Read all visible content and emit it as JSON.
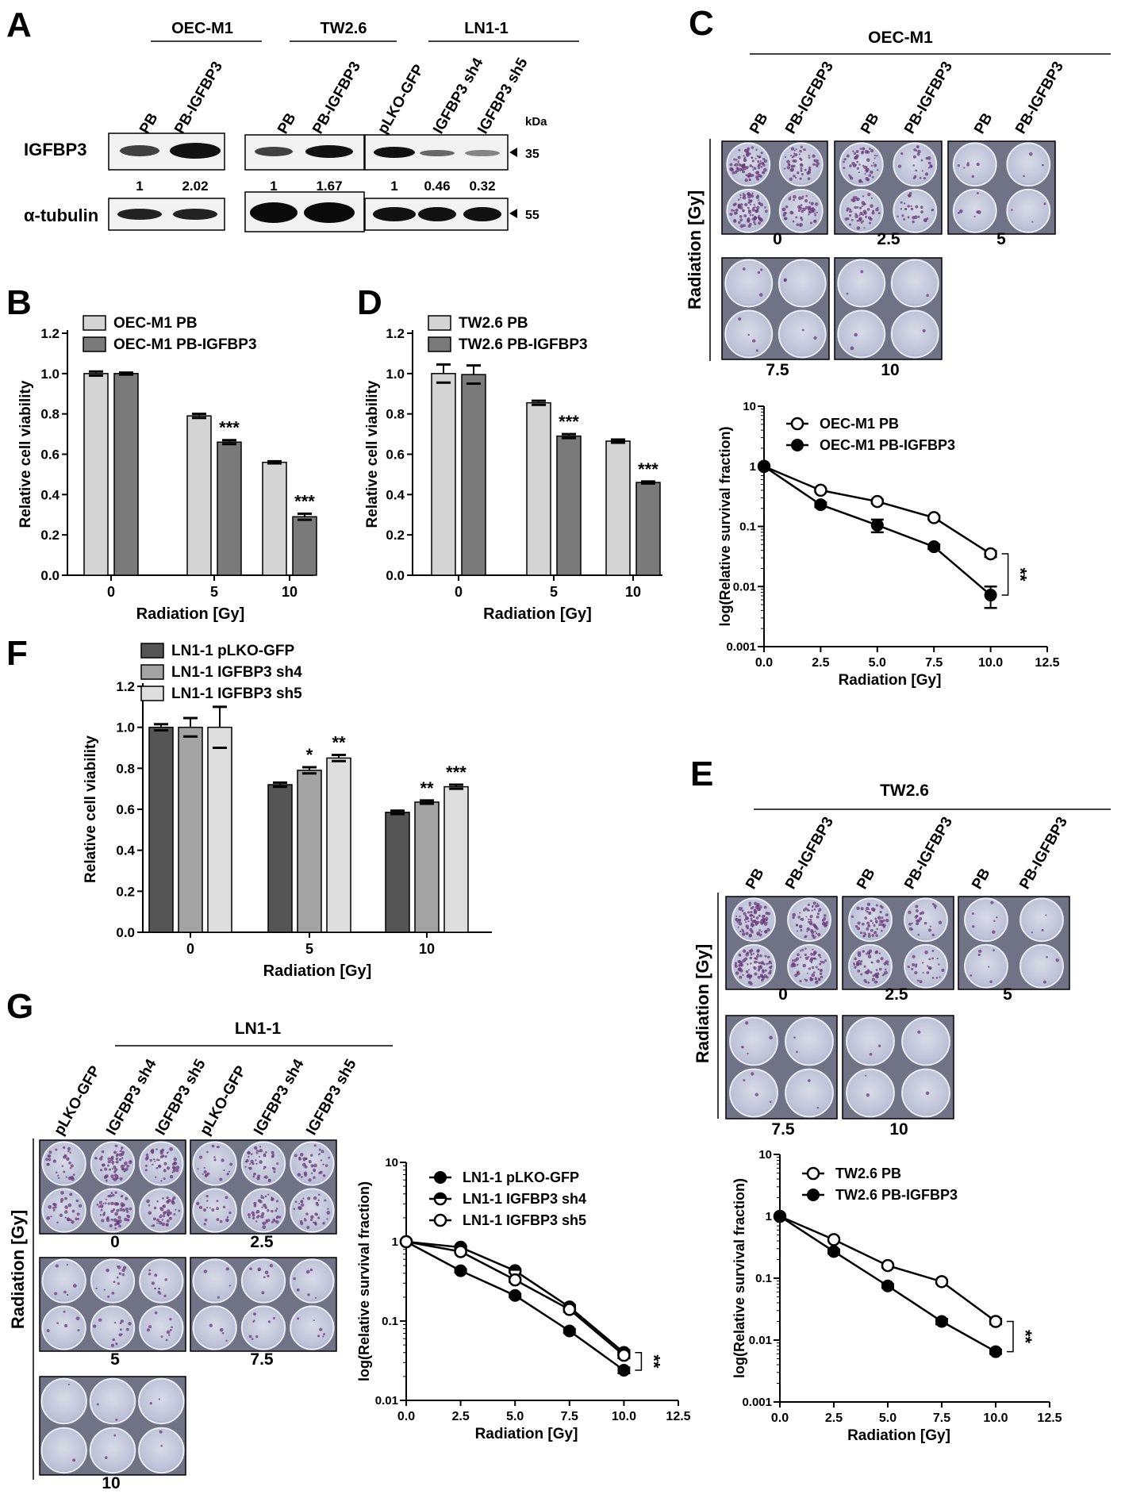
{
  "panel_letters": {
    "a": "A",
    "b": "B",
    "c": "C",
    "d": "D",
    "e": "E",
    "f": "F",
    "g": "G"
  },
  "western": {
    "groups": [
      {
        "name": "OEC-M1",
        "lanes": [
          "PB",
          "PB-IGFBP3"
        ],
        "quant": [
          "1",
          "2.02"
        ]
      },
      {
        "name": "TW2.6",
        "lanes": [
          "PB",
          "PB-IGFBP3"
        ],
        "quant": [
          "1",
          "1.67"
        ]
      },
      {
        "name": "LN1-1",
        "lanes": [
          "pLKO-GFP",
          "IGFBP3 sh4",
          "IGFBP3 sh5"
        ],
        "quant": [
          "1",
          "0.46",
          "0.32"
        ]
      }
    ],
    "kda_label": "kDa",
    "row_labels": [
      "IGFBP3",
      "α-tubulin"
    ],
    "markers": [
      "35",
      "55"
    ]
  },
  "colony": {
    "c": {
      "title": "OEC-M1",
      "labels": [
        "PB",
        "PB-IGFBP3",
        "PB",
        "PB-IGFBP3",
        "PB",
        "PB-IGFBP3"
      ],
      "doses": [
        "0",
        "2.5",
        "5",
        "7.5",
        "10"
      ],
      "ylabel": "Radiation [Gy]"
    },
    "e": {
      "title": "TW2.6",
      "labels": [
        "PB",
        "PB-IGFBP3",
        "PB",
        "PB-IGFBP3",
        "PB",
        "PB-IGFBP3"
      ],
      "doses": [
        "0",
        "2.5",
        "5",
        "7.5",
        "10"
      ],
      "ylabel": "Radiation [Gy]"
    },
    "g": {
      "title": "LN1-1",
      "labels": [
        "pLKO-GFP",
        "IGFBP3 sh4",
        "IGFBP3 sh5",
        "pLKO-GFP",
        "IGFBP3 sh4",
        "IGFBP3 sh5"
      ],
      "doses": [
        "0",
        "2.5",
        "5",
        "7.5",
        "10"
      ],
      "ylabel": "Radiation [Gy]"
    }
  },
  "chart_data": [
    {
      "id": "B",
      "type": "bar",
      "categories": [
        "0",
        "5",
        "10"
      ],
      "xlabel": "Radiation [Gy]",
      "ylabel": "Relative cell viability",
      "ylim": [
        0,
        1.2
      ],
      "yticks": [
        "0.0",
        "0.2",
        "0.4",
        "0.6",
        "0.8",
        "1.0",
        "1.2"
      ],
      "series": [
        {
          "name": "OEC-M1 PB",
          "color": "#d4d4d4",
          "values": [
            1.0,
            0.79,
            0.56
          ],
          "err": [
            0.01,
            0.01,
            0.005
          ]
        },
        {
          "name": "OEC-M1 PB-IGFBP3",
          "color": "#7a7a7a",
          "values": [
            1.0,
            0.66,
            0.29
          ],
          "err": [
            0.005,
            0.01,
            0.015
          ]
        }
      ],
      "sig": [
        {
          "cat": 1,
          "series": 1,
          "text": "***"
        },
        {
          "cat": 2,
          "series": 1,
          "text": "***"
        }
      ]
    },
    {
      "id": "D",
      "type": "bar",
      "categories": [
        "0",
        "5",
        "10"
      ],
      "xlabel": "Radiation [Gy]",
      "ylabel": "Relative cell viability",
      "ylim": [
        0,
        1.2
      ],
      "yticks": [
        "0.0",
        "0.2",
        "0.4",
        "0.6",
        "0.8",
        "1.0",
        "1.2"
      ],
      "series": [
        {
          "name": "TW2.6 PB",
          "color": "#d4d4d4",
          "values": [
            1.0,
            0.855,
            0.665
          ],
          "err": [
            0.045,
            0.01,
            0.008
          ]
        },
        {
          "name": "TW2.6 PB-IGFBP3",
          "color": "#7a7a7a",
          "values": [
            0.995,
            0.69,
            0.46
          ],
          "err": [
            0.045,
            0.01,
            0.005
          ]
        }
      ],
      "sig": [
        {
          "cat": 1,
          "series": 1,
          "text": "***"
        },
        {
          "cat": 2,
          "series": 1,
          "text": "***"
        }
      ]
    },
    {
      "id": "F",
      "type": "bar",
      "categories": [
        "0",
        "5",
        "10"
      ],
      "xlabel": "Radiation [Gy]",
      "ylabel": "Relative cell viability",
      "ylim": [
        0,
        1.2
      ],
      "yticks": [
        "0.0",
        "0.2",
        "0.4",
        "0.6",
        "0.8",
        "1.0",
        "1.2"
      ],
      "series": [
        {
          "name": "LN1-1 pLKO-GFP",
          "color": "#555555",
          "values": [
            1.0,
            0.72,
            0.585
          ],
          "err": [
            0.015,
            0.01,
            0.008
          ]
        },
        {
          "name": "LN1-1 IGFBP3 sh4",
          "color": "#a3a3a3",
          "values": [
            1.0,
            0.79,
            0.635
          ],
          "err": [
            0.045,
            0.015,
            0.008
          ]
        },
        {
          "name": "LN1-1 IGFBP3 sh5",
          "color": "#dedede",
          "values": [
            1.0,
            0.85,
            0.71
          ],
          "err": [
            0.1,
            0.015,
            0.01
          ]
        }
      ],
      "sig": [
        {
          "cat": 1,
          "series": 1,
          "text": "*"
        },
        {
          "cat": 1,
          "series": 2,
          "text": "**"
        },
        {
          "cat": 2,
          "series": 1,
          "text": "**"
        },
        {
          "cat": 2,
          "series": 2,
          "text": "***"
        }
      ]
    },
    {
      "id": "C",
      "type": "line",
      "x": [
        0,
        2.5,
        5,
        7.5,
        10
      ],
      "xlabel": "Radiation [Gy]",
      "ylabel": "log(Relative survival fraction)",
      "yscale": "log",
      "ylim": [
        0.001,
        10
      ],
      "xlim": [
        0,
        12.5
      ],
      "xticks": [
        "0.0",
        "2.5",
        "5.0",
        "7.5",
        "10.0",
        "12.5"
      ],
      "yticks": [
        "0.001",
        "0.01",
        "0.1",
        "1",
        "10"
      ],
      "series": [
        {
          "name": "OEC-M1 PB",
          "marker": "open",
          "values": [
            1,
            0.4,
            0.26,
            0.14,
            0.035
          ],
          "err": [
            0.02,
            0.02,
            0.02,
            0.01,
            0.004
          ]
        },
        {
          "name": "OEC-M1 PB-IGFBP3",
          "marker": "filled",
          "values": [
            1,
            0.23,
            0.105,
            0.046,
            0.0072
          ],
          "err": [
            0.02,
            0.02,
            0.025,
            0.004,
            0.0028
          ]
        }
      ],
      "sig": "**"
    },
    {
      "id": "E",
      "type": "line",
      "x": [
        0,
        2.5,
        5,
        7.5,
        10
      ],
      "xlabel": "Radiation [Gy]",
      "ylabel": "log(Relative survival fraction)",
      "yscale": "log",
      "ylim": [
        0.001,
        10
      ],
      "xlim": [
        0,
        12.5
      ],
      "xticks": [
        "0.0",
        "2.5",
        "5.0",
        "7.5",
        "10.0",
        "12.5"
      ],
      "yticks": [
        "0.001",
        "0.01",
        "0.1",
        "1",
        "10"
      ],
      "series": [
        {
          "name": "TW2.6 PB",
          "marker": "open",
          "values": [
            1,
            0.42,
            0.16,
            0.088,
            0.02
          ],
          "err": [
            0.02,
            0.02,
            0.01,
            0.005,
            0.002
          ]
        },
        {
          "name": "TW2.6 PB-IGFBP3",
          "marker": "filled",
          "values": [
            1,
            0.27,
            0.075,
            0.02,
            0.0065
          ],
          "err": [
            0.02,
            0.02,
            0.005,
            0.002,
            0.0005
          ]
        }
      ],
      "sig": "**"
    },
    {
      "id": "G",
      "type": "line",
      "x": [
        0,
        2.5,
        5,
        7.5,
        10
      ],
      "xlabel": "Radiation [Gy]",
      "ylabel": "log(Relative survival fraction)",
      "yscale": "log",
      "ylim": [
        0.01,
        10
      ],
      "xlim": [
        0,
        12.5
      ],
      "xticks": [
        "0.0",
        "2.5",
        "5.0",
        "7.5",
        "10.0",
        "12.5"
      ],
      "yticks": [
        "0.01",
        "0.1",
        "1",
        "10"
      ],
      "series": [
        {
          "name": "LN1-1 pLKO-GFP",
          "marker": "filled",
          "values": [
            1,
            0.43,
            0.21,
            0.075,
            0.024
          ],
          "err": [
            0.02,
            0.02,
            0.01,
            0.004,
            0.002
          ]
        },
        {
          "name": "LN1-1 IGFBP3 sh4",
          "marker": "half",
          "values": [
            1,
            0.85,
            0.43,
            0.15,
            0.04
          ],
          "err": [
            0.02,
            0.03,
            0.02,
            0.01,
            0.003
          ]
        },
        {
          "name": "LN1-1 IGFBP3 sh5",
          "marker": "open",
          "values": [
            1,
            0.75,
            0.33,
            0.14,
            0.037
          ],
          "err": [
            0.02,
            0.03,
            0.02,
            0.01,
            0.003
          ]
        }
      ],
      "sig": "**"
    }
  ]
}
